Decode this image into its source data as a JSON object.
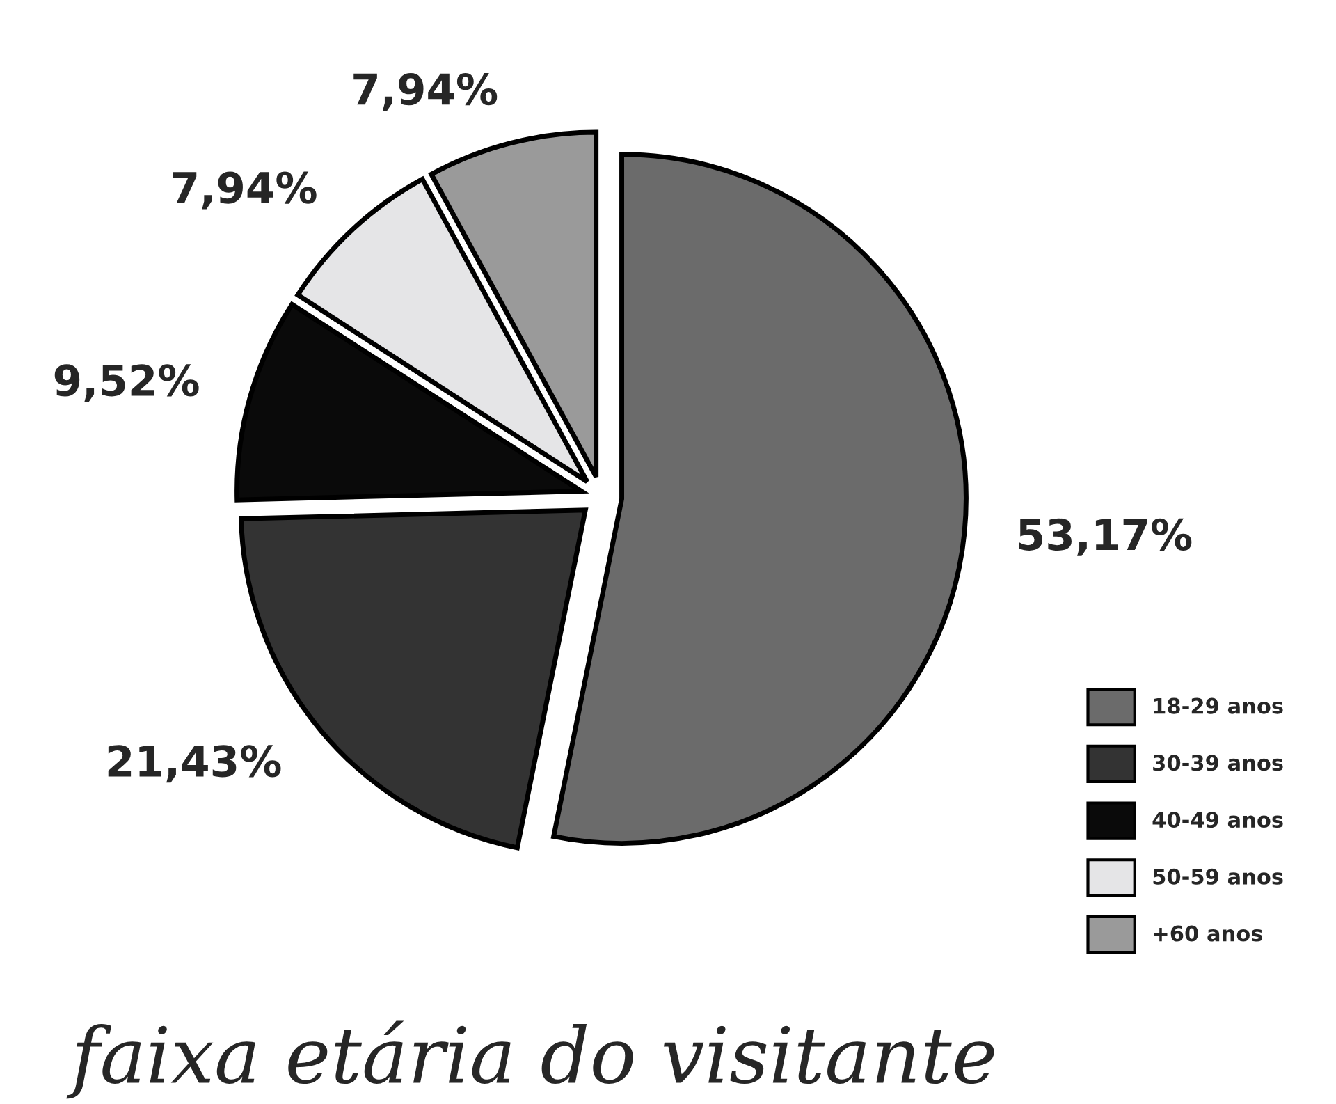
{
  "chart_data": {
    "type": "pie",
    "title": "faixa etária do visitante",
    "categories": [
      "18-29 anos",
      "30-39 anos",
      "40-49 anos",
      "50-59 anos",
      "+60 anos"
    ],
    "values": [
      53.17,
      21.43,
      9.52,
      7.94,
      7.94
    ],
    "value_labels": [
      "53,17%",
      "21,43%",
      "9,52%",
      "7,94%",
      "7,94%"
    ],
    "colors": [
      "#6b6b6b",
      "#333333",
      "#0a0a0a",
      "#e5e5e7",
      "#9a9a9a"
    ],
    "legend": "bottom right"
  }
}
